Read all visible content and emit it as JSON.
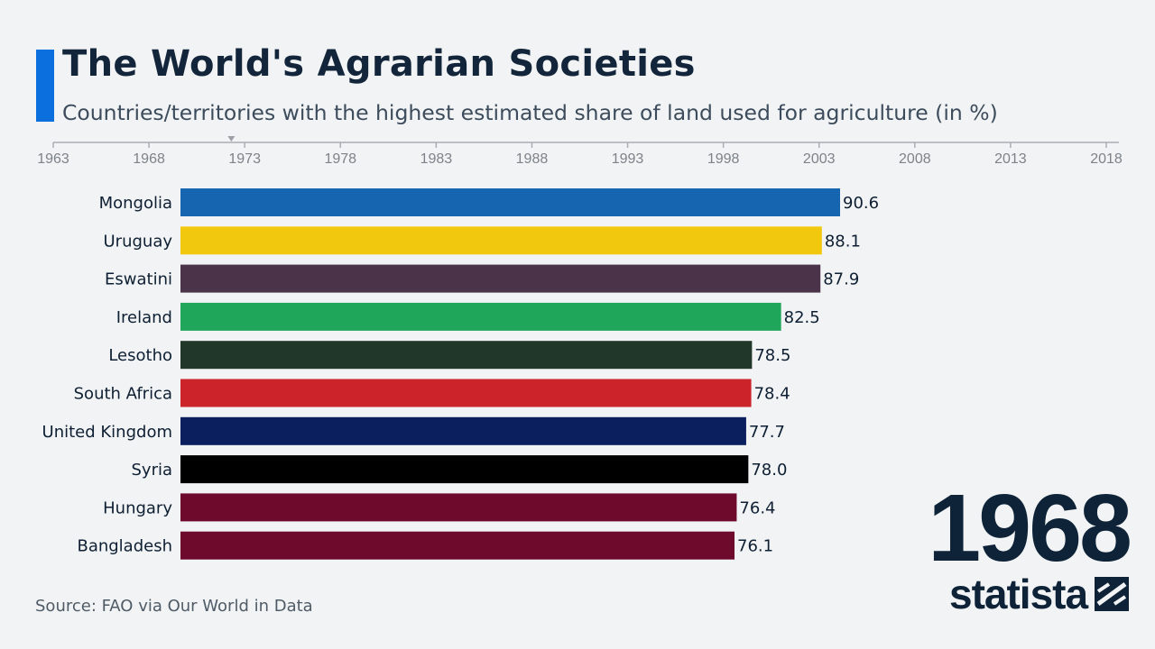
{
  "chart_data": {
    "type": "bar",
    "title": "The World's Agrarian Societies",
    "subtitle": "Countries/territories with the highest estimated share of land used for agriculture (in %)",
    "current_year": "1968",
    "timeline": {
      "ticks": [
        "1963",
        "1968",
        "1973",
        "1978",
        "1983",
        "1988",
        "1993",
        "1998",
        "2003",
        "2008",
        "2013",
        "2018"
      ],
      "range": [
        1963,
        2018
      ],
      "marker_year": 1972.3
    },
    "xlim": [
      0,
      100
    ],
    "categories": [
      "Mongolia",
      "Uruguay",
      "Eswatini",
      "Ireland",
      "Lesotho",
      "South Africa",
      "United Kingdom",
      "Syria",
      "Hungary",
      "Bangladesh"
    ],
    "values": [
      90.6,
      88.1,
      87.9,
      82.5,
      78.5,
      78.4,
      77.7,
      78.0,
      76.4,
      76.1
    ],
    "value_labels": [
      "90.6",
      "88.1",
      "87.9",
      "82.5",
      "78.5",
      "78.4",
      "77.7",
      "78.0",
      "76.4",
      "76.1"
    ],
    "rows": [
      0,
      1,
      2,
      3,
      4,
      5,
      6,
      7,
      8.5,
      8.5
    ],
    "colors": [
      "#1565b0",
      "#f2c80f",
      "#4b3349",
      "#1fa65a",
      "#21372a",
      "#cc2229",
      "#0b1f5e",
      "#000000",
      "#6e0a2b",
      "#6e0a2b"
    ],
    "source": "Source: FAO via Our World in Data",
    "brand": "statista"
  }
}
